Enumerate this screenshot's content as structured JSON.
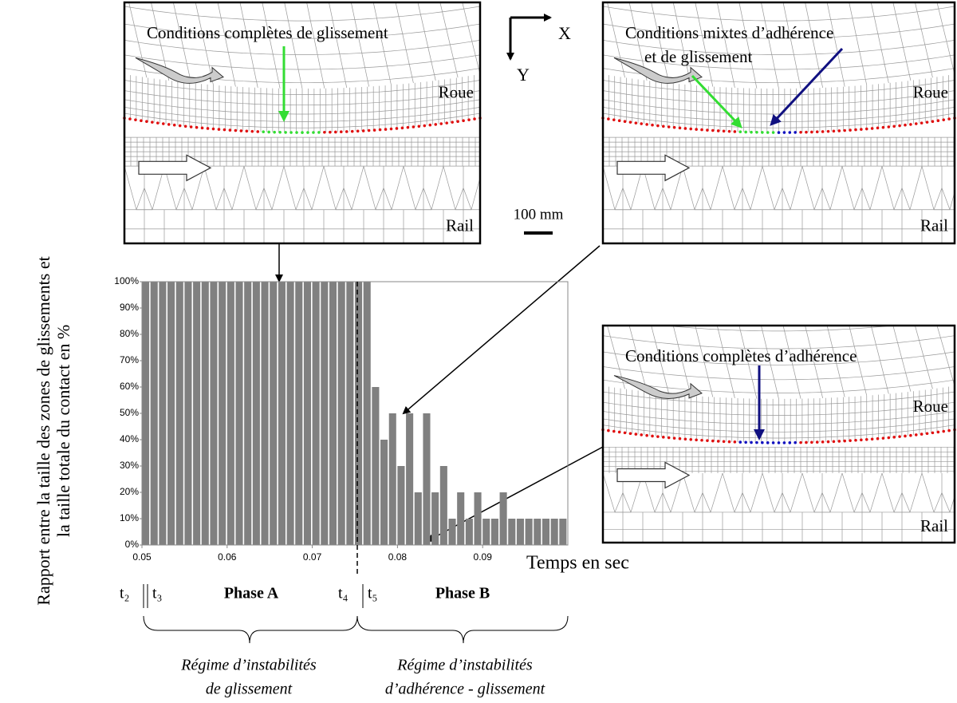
{
  "chart_data": {
    "type": "bar",
    "ylabel": "Rapport entre la taille des zones de glissements et la taille totale du contact en %",
    "xlabel": "Temps en sec",
    "x": [
      0.05,
      0.051,
      0.052,
      0.053,
      0.054,
      0.055,
      0.056,
      0.057,
      0.058,
      0.059,
      0.06,
      0.061,
      0.062,
      0.063,
      0.064,
      0.065,
      0.066,
      0.067,
      0.068,
      0.069,
      0.07,
      0.071,
      0.072,
      0.073,
      0.074,
      0.075,
      0.076,
      0.077,
      0.078,
      0.079,
      0.08,
      0.081,
      0.082,
      0.083,
      0.084,
      0.085,
      0.086,
      0.087,
      0.088,
      0.089,
      0.09,
      0.091,
      0.092,
      0.093,
      0.094,
      0.095,
      0.096,
      0.097,
      0.098,
      0.099
    ],
    "values": [
      100,
      100,
      100,
      100,
      100,
      100,
      100,
      100,
      100,
      100,
      100,
      100,
      100,
      100,
      100,
      100,
      100,
      100,
      100,
      100,
      100,
      100,
      100,
      100,
      100,
      100,
      100,
      60,
      40,
      50,
      30,
      50,
      20,
      50,
      20,
      30,
      10,
      20,
      10,
      20,
      10,
      10,
      20,
      10,
      10,
      10,
      10,
      10,
      10,
      10
    ],
    "color": "#808080",
    "xlim": [
      0.05,
      0.1
    ],
    "xticks": [
      0.05,
      0.06,
      0.07,
      0.08,
      0.09
    ],
    "ylim": [
      0,
      100
    ],
    "yticks": [
      {
        "value": 0,
        "label": "0%"
      },
      {
        "value": 10,
        "label": "10%"
      },
      {
        "value": 20,
        "label": "20%"
      },
      {
        "value": 30,
        "label": "30%"
      },
      {
        "value": 40,
        "label": "40%"
      },
      {
        "value": 50,
        "label": "50%"
      },
      {
        "value": 60,
        "label": "60%"
      },
      {
        "value": 70,
        "label": "70%"
      },
      {
        "value": 80,
        "label": "80%"
      },
      {
        "value": 90,
        "label": "90%"
      },
      {
        "value": 100,
        "label": "100%"
      }
    ],
    "grid": false,
    "annotations": {
      "t2": "t₂",
      "t3": "t₃",
      "phase_a": "Phase A",
      "t4": "t₄",
      "t5": "t₅",
      "phase_b": "Phase B"
    },
    "regimes": [
      [
        "Régime d’instabilités",
        "de glissement"
      ],
      [
        "Régime d’instabilités",
        "d’adhérence - glissement"
      ]
    ]
  },
  "panels": [
    {
      "title": [
        "Conditions complètes de glissement"
      ],
      "wheel": "Roue",
      "rail": "Rail"
    },
    {
      "title": [
        "Conditions mixtes d’adhérence",
        "et de glissement"
      ],
      "wheel": "Roue",
      "rail": "Rail"
    },
    {
      "title": [
        "Conditions complètes d’adhérence"
      ],
      "wheel": "Roue",
      "rail": "Rail"
    }
  ],
  "axes": {
    "x": "X",
    "y": "Y",
    "scale": "100 mm"
  }
}
